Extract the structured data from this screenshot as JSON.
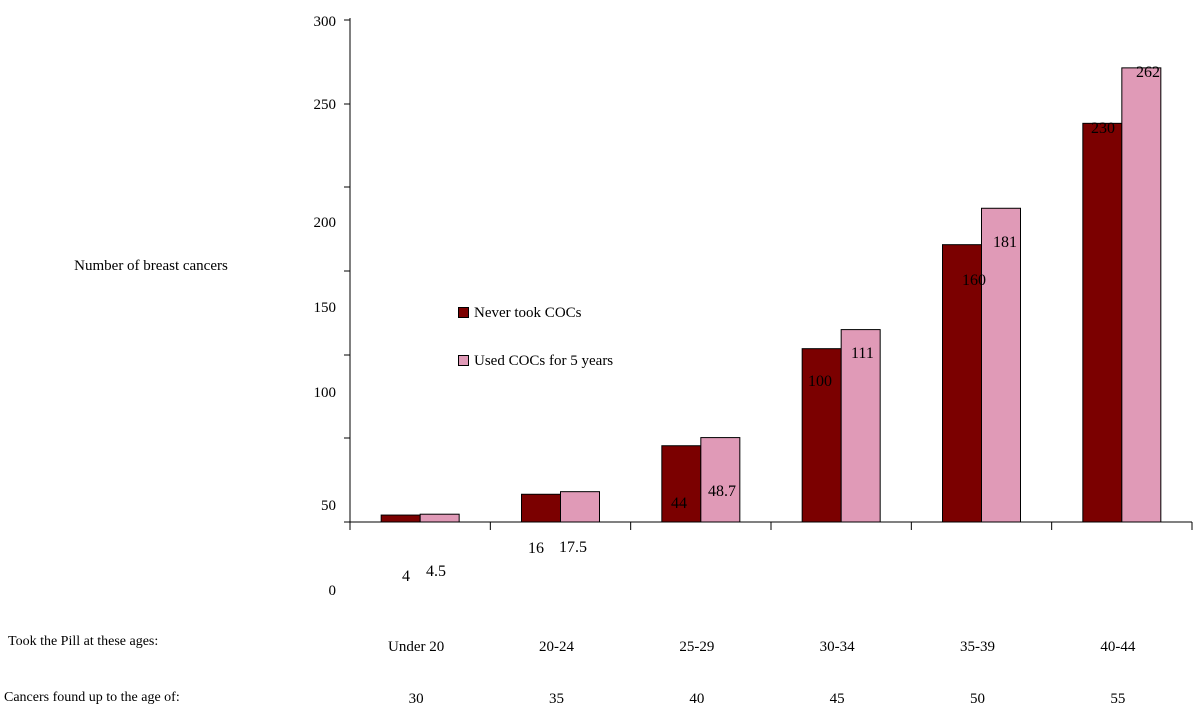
{
  "chart_data": {
    "type": "bar",
    "ylabel": "Number of breast cancers",
    "yticks": [
      "300",
      "250",
      "200",
      "150",
      "100",
      "50",
      "0"
    ],
    "categories": [
      "Under 20",
      "20-24",
      "25-29",
      "30-34",
      "35-39",
      "40-44"
    ],
    "cancers_found_ages": [
      "30",
      "35",
      "40",
      "45",
      "50",
      "55"
    ],
    "series": [
      {
        "name": "Never took COCs",
        "color": "#7B0000",
        "values": [
          4,
          16,
          44,
          100,
          160,
          230
        ]
      },
      {
        "name": "Used COCs for 5 years",
        "color": "#E09AB7",
        "values": [
          4.5,
          17.5,
          48.7,
          111,
          181,
          262
        ]
      }
    ],
    "data_labels": [
      [
        "4",
        "16",
        "44",
        "100",
        "160",
        "230"
      ],
      [
        "4.5",
        "17.5",
        "48.7",
        "111",
        "181",
        "262"
      ]
    ],
    "legend_position": "center-left",
    "grid": false
  },
  "row_labels": {
    "took_pill": "Took the Pill at these ages:",
    "cancers_found": "Cancers found up to the age of:"
  }
}
